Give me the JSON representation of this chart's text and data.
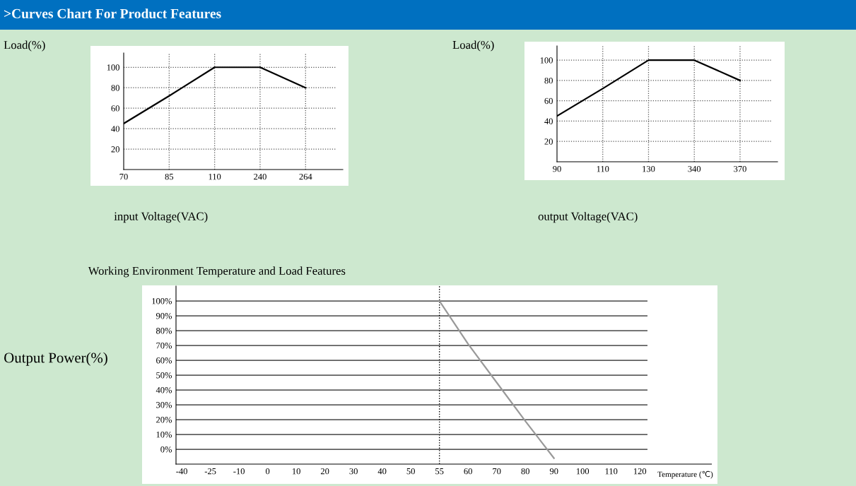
{
  "chart_data": [
    {
      "type": "line",
      "annotations": [
        ">Curves Chart For Product Features"
      ],
      "ylabel": "Load(%)",
      "xlabel": "input Voltage(VAC)",
      "categories": [
        "70",
        "85",
        "110",
        "240",
        "264"
      ],
      "series": [
        {
          "color": "#000000",
          "values": [
            45,
            72,
            100,
            100,
            80
          ]
        }
      ],
      "ylim": [
        0,
        114
      ],
      "yticks": [
        20,
        40,
        60,
        80,
        100
      ],
      "grid": true,
      "line_style": "solid",
      "marker": "none"
    },
    {
      "type": "line",
      "ylabel": "Load(%)",
      "xlabel": "output Voltage(VAC)",
      "categories": [
        "90",
        "110",
        "130",
        "340",
        "370"
      ],
      "series": [
        {
          "color": "#000000",
          "values": [
            45,
            72,
            100,
            100,
            80
          ]
        }
      ],
      "ylim": [
        0,
        114
      ],
      "yticks": [
        20,
        40,
        60,
        80,
        100
      ],
      "grid": true,
      "line_style": "solid",
      "marker": "none"
    },
    {
      "type": "line",
      "title": "Working Environment Temperature and Load Features",
      "ylabel": "Output Power(%)",
      "xlabel": "Temperature (℃)",
      "categories": [
        "-40",
        "-25",
        "-10",
        "0",
        "10",
        "20",
        "30",
        "40",
        "50",
        "55",
        "60",
        "70",
        "80",
        "90",
        "100",
        "110",
        "120"
      ],
      "series": [
        {
          "color": "#999999",
          "values": [
            null,
            null,
            null,
            null,
            null,
            null,
            null,
            null,
            null,
            100,
            71,
            45,
            19,
            -6,
            null,
            null,
            null
          ]
        }
      ],
      "ylim": [
        -10,
        110
      ],
      "yticks": [
        {
          "value": 0,
          "label": "0%"
        },
        {
          "value": 10,
          "label": "10%"
        },
        {
          "value": 20,
          "label": "20%"
        },
        {
          "value": 30,
          "label": "30%"
        },
        {
          "value": 40,
          "label": "40%"
        },
        {
          "value": 50,
          "label": "50%"
        },
        {
          "value": 60,
          "label": "60%"
        },
        {
          "value": 70,
          "label": "70%"
        },
        {
          "value": 80,
          "label": "80%"
        },
        {
          "value": 90,
          "label": "90%"
        },
        {
          "value": 100,
          "label": "100%"
        }
      ],
      "ref_lines": [
        {
          "axis": "x",
          "value": "55",
          "line_style": "dotted",
          "color": "#000000"
        }
      ],
      "grid": "y",
      "line_style": "solid",
      "marker": "none"
    }
  ]
}
